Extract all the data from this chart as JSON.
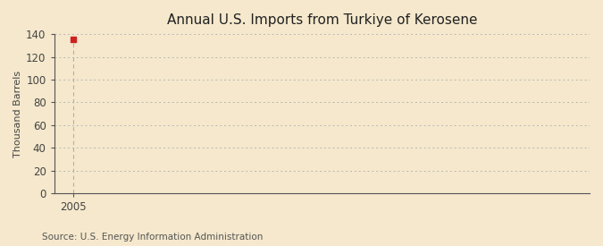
{
  "title": "Annual U.S. Imports from Turkiye of Kerosene",
  "ylabel": "Thousand Barrels",
  "source": "Source: U.S. Energy Information Administration",
  "x_data": [
    2005
  ],
  "y_data": [
    135
  ],
  "marker_color": "#cc2222",
  "marker_style": "s",
  "marker_size": 4,
  "vline_color": "#b0b0b0",
  "xlim": [
    2004.3,
    2024
  ],
  "ylim": [
    0,
    140
  ],
  "yticks": [
    0,
    20,
    40,
    60,
    80,
    100,
    120,
    140
  ],
  "xticks": [
    2005
  ],
  "bg_color": "#f5e8cc",
  "plot_bg_color": "#f5e8cc",
  "grid_color": "#b8b8b8",
  "title_fontsize": 11,
  "label_fontsize": 8,
  "tick_fontsize": 8.5,
  "source_fontsize": 7.5,
  "spine_color": "#555555"
}
